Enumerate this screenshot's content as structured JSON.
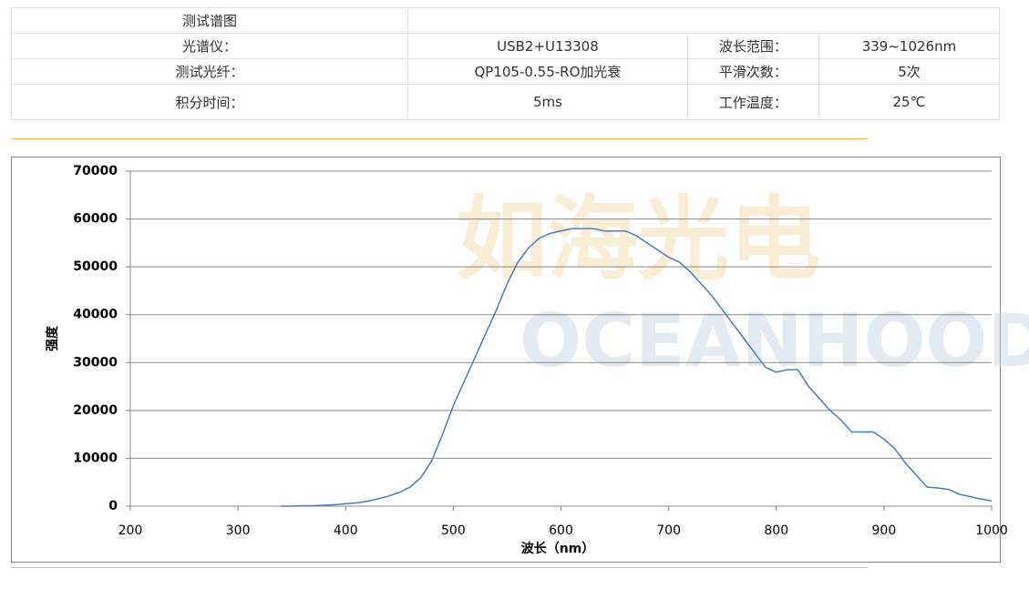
{
  "table": {
    "title": "测试谱图",
    "rows": [
      [
        "光谱仪：",
        "USB2+U13308",
        "波长范围：",
        "339~1026nm"
      ],
      [
        "测试光纤：",
        "QP105-0.55-RO加光衰",
        "平滑次数：",
        "5次"
      ],
      [
        "积分时间：",
        "5ms",
        "工作温度：",
        "25℃"
      ]
    ]
  },
  "watermark": {
    "cn": "如海光电",
    "en": "OCEANHOOD"
  },
  "chart_data": {
    "type": "line",
    "xlabel": "波长（nm）",
    "ylabel": "强度",
    "xlim": [
      200,
      1000
    ],
    "xticks": [
      200,
      300,
      400,
      500,
      600,
      700,
      800,
      900,
      1000
    ],
    "ylim": [
      0,
      70000
    ],
    "yticks": [
      0,
      10000,
      20000,
      30000,
      40000,
      50000,
      60000,
      70000
    ],
    "grid": true,
    "x": [
      340,
      350,
      360,
      370,
      380,
      390,
      400,
      410,
      420,
      430,
      440,
      450,
      460,
      470,
      480,
      490,
      500,
      510,
      520,
      530,
      540,
      550,
      560,
      570,
      580,
      590,
      600,
      610,
      620,
      630,
      640,
      650,
      660,
      670,
      680,
      690,
      700,
      710,
      720,
      730,
      740,
      750,
      760,
      770,
      780,
      790,
      800,
      810,
      820,
      830,
      840,
      850,
      860,
      870,
      880,
      890,
      900,
      910,
      920,
      930,
      940,
      950,
      960,
      970,
      980,
      990,
      1000
    ],
    "series": [
      {
        "color": "#4a7ebb",
        "values": [
          0,
          0,
          100,
          100,
          200,
          300,
          500,
          700,
          1000,
          1500,
          2100,
          2900,
          4000,
          6000,
          9500,
          15000,
          21000,
          26000,
          31000,
          36000,
          41000,
          46500,
          51000,
          54000,
          56000,
          57000,
          57500,
          58000,
          58000,
          58000,
          57500,
          57500,
          57500,
          56500,
          55000,
          53500,
          52000,
          51000,
          49000,
          46500,
          44000,
          41000,
          38000,
          35000,
          32000,
          29000,
          28000,
          28500,
          28500,
          25000,
          22500,
          20000,
          18000,
          15500,
          15500,
          15500,
          14000,
          12000,
          9000,
          6500,
          4000,
          3800,
          3500,
          2500,
          2000,
          1500,
          1100
        ]
      }
    ]
  }
}
